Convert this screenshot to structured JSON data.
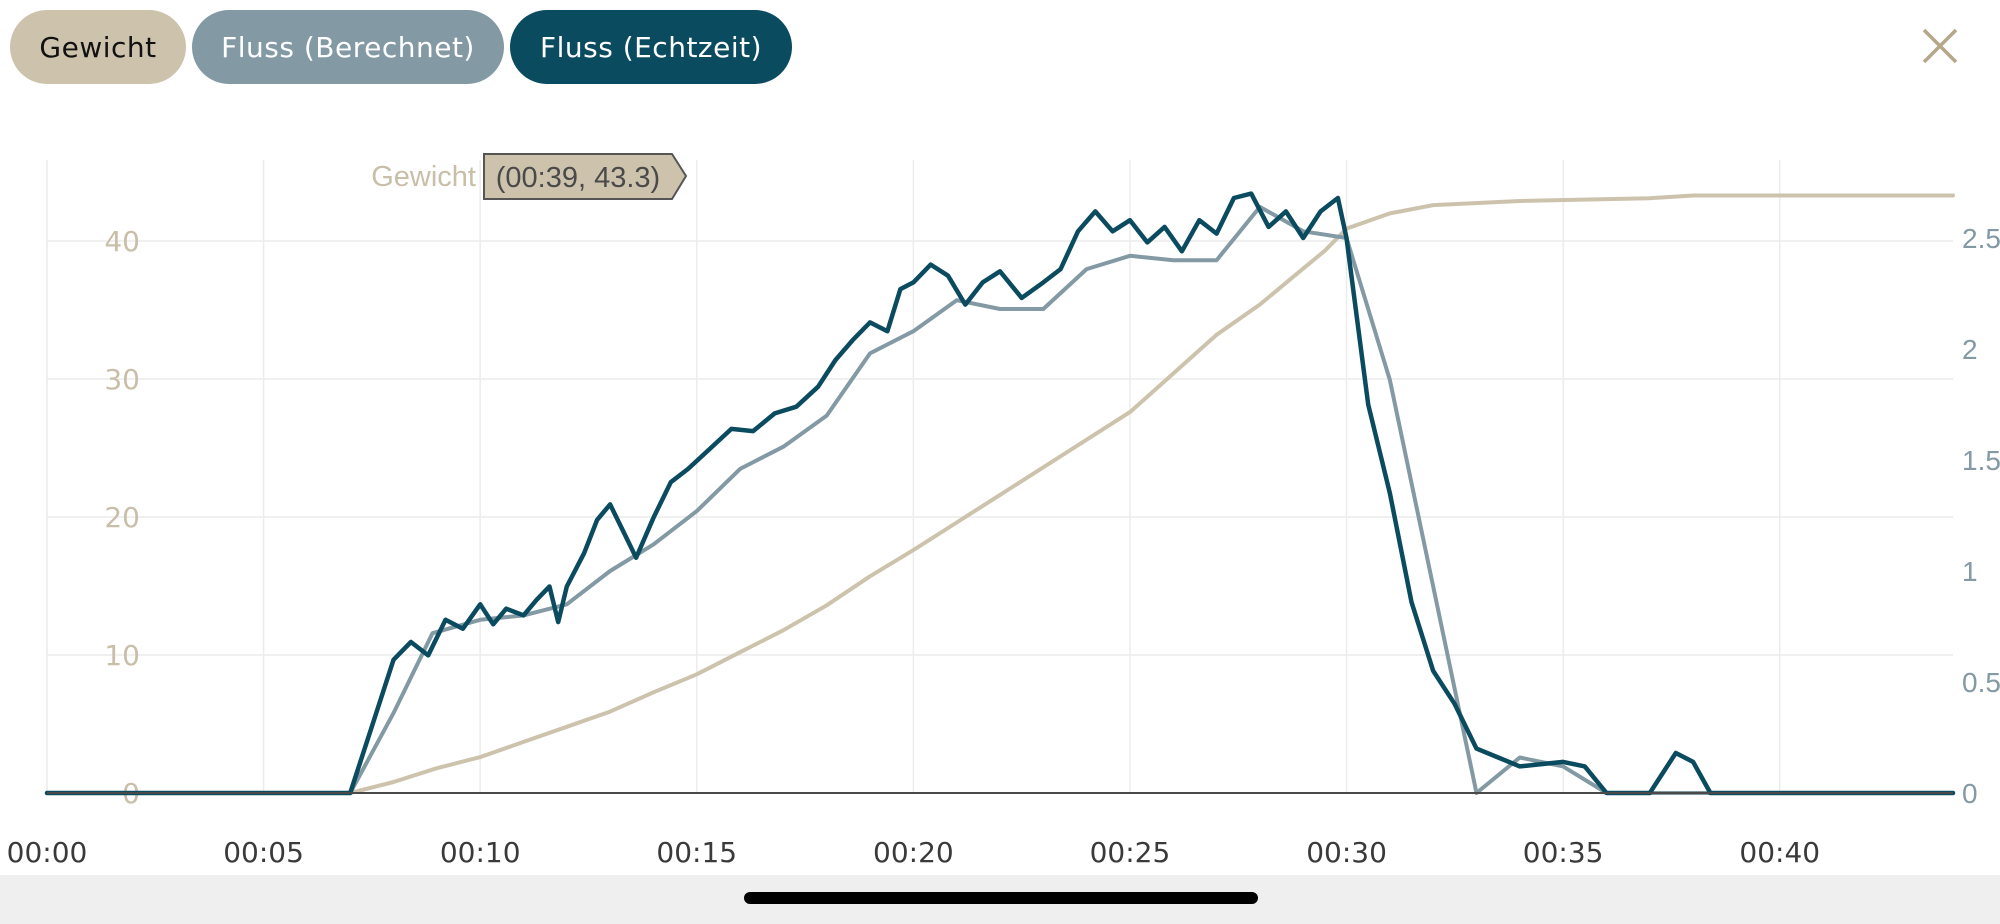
{
  "toggles": {
    "weight_label": "Gewicht",
    "flow_calculated_label": "Fluss (Berechnet)",
    "flow_realtime_label": "Fluss (Echtzeit)"
  },
  "colors": {
    "weight": "#cdc3ad",
    "weight_text": "#c9bfa8",
    "flow_calculated": "#8399a4",
    "flow_realtime": "#0b4b5f",
    "grid": "#ececec",
    "axis_text": "#3a3a3a",
    "close_icon": "#b5a78a",
    "tooltip_bg": "#cdc3ad",
    "tooltip_text": "#4a4a4a"
  },
  "close_icon": "close-icon",
  "chart_data": {
    "type": "line",
    "x_unit": "seconds",
    "x_axis": {
      "range": [
        0,
        44
      ],
      "ticks": [
        0,
        5,
        10,
        15,
        20,
        25,
        30,
        35,
        40
      ],
      "tick_labels": [
        "00:00",
        "00:05",
        "00:10",
        "00:15",
        "00:20",
        "00:25",
        "00:30",
        "00:35",
        "00:40"
      ]
    },
    "y_left": {
      "range": [
        0,
        47
      ],
      "ticks": [
        0,
        10,
        20,
        30,
        40
      ],
      "tick_labels": [
        "0",
        "10",
        "20",
        "30",
        "40"
      ]
    },
    "y_right": {
      "range": [
        0,
        2.75
      ],
      "ticks": [
        0,
        0.5,
        1,
        1.5,
        2,
        2.5
      ],
      "tick_labels": [
        "0",
        "0.5",
        "1",
        "1.5",
        "2",
        "2.5"
      ]
    },
    "grid": true,
    "tooltip": {
      "series_label": "Gewicht",
      "text": "(00:39, 43.3)"
    },
    "series": [
      {
        "name": "Gewicht",
        "axis": "left",
        "color": "#cdc3ad",
        "points": [
          [
            0,
            0
          ],
          [
            7,
            0
          ],
          [
            8,
            0.8
          ],
          [
            9,
            1.8
          ],
          [
            10,
            2.6
          ],
          [
            11,
            3.7
          ],
          [
            12,
            4.8
          ],
          [
            13,
            5.9
          ],
          [
            14,
            7.3
          ],
          [
            15,
            8.6
          ],
          [
            16,
            10.2
          ],
          [
            17,
            11.8
          ],
          [
            18,
            13.6
          ],
          [
            19,
            15.7
          ],
          [
            20,
            17.6
          ],
          [
            21,
            19.6
          ],
          [
            22,
            21.6
          ],
          [
            23,
            23.6
          ],
          [
            24,
            25.6
          ],
          [
            25,
            27.6
          ],
          [
            26,
            30.4
          ],
          [
            27,
            33.2
          ],
          [
            28,
            35.4
          ],
          [
            29,
            38.0
          ],
          [
            29.5,
            39.3
          ],
          [
            30,
            40.9
          ],
          [
            31,
            42.0
          ],
          [
            32,
            42.6
          ],
          [
            34,
            42.9
          ],
          [
            37,
            43.1
          ],
          [
            38,
            43.3
          ],
          [
            44,
            43.3
          ]
        ]
      },
      {
        "name": "Fluss (Berechnet)",
        "axis": "right",
        "color": "#8399a4",
        "points": [
          [
            0,
            0
          ],
          [
            7,
            0
          ],
          [
            8,
            0.36
          ],
          [
            8.9,
            0.72
          ],
          [
            10,
            0.78
          ],
          [
            11,
            0.8
          ],
          [
            12,
            0.85
          ],
          [
            13,
            1.0
          ],
          [
            14,
            1.12
          ],
          [
            15,
            1.27
          ],
          [
            16,
            1.46
          ],
          [
            17,
            1.56
          ],
          [
            18,
            1.7
          ],
          [
            19,
            1.98
          ],
          [
            20,
            2.08
          ],
          [
            21,
            2.22
          ],
          [
            22,
            2.18
          ],
          [
            23,
            2.18
          ],
          [
            24,
            2.36
          ],
          [
            25,
            2.42
          ],
          [
            26,
            2.4
          ],
          [
            27,
            2.4
          ],
          [
            28,
            2.64
          ],
          [
            29,
            2.53
          ],
          [
            30,
            2.5
          ],
          [
            31,
            1.86
          ],
          [
            32,
            0.93
          ],
          [
            33,
            0
          ],
          [
            34,
            0.16
          ],
          [
            35,
            0.12
          ],
          [
            36,
            0
          ],
          [
            37,
            0
          ],
          [
            38,
            0
          ],
          [
            44,
            0
          ]
        ]
      },
      {
        "name": "Fluss (Echtzeit)",
        "axis": "right",
        "color": "#0b4b5f",
        "points": [
          [
            0,
            0
          ],
          [
            7,
            0
          ],
          [
            7.5,
            0.3
          ],
          [
            8,
            0.6
          ],
          [
            8.4,
            0.68
          ],
          [
            8.8,
            0.62
          ],
          [
            9.2,
            0.78
          ],
          [
            9.6,
            0.74
          ],
          [
            10,
            0.85
          ],
          [
            10.3,
            0.76
          ],
          [
            10.6,
            0.83
          ],
          [
            11,
            0.8
          ],
          [
            11.3,
            0.87
          ],
          [
            11.6,
            0.93
          ],
          [
            11.8,
            0.77
          ],
          [
            12,
            0.93
          ],
          [
            12.4,
            1.08
          ],
          [
            12.7,
            1.23
          ],
          [
            13,
            1.3
          ],
          [
            13.3,
            1.18
          ],
          [
            13.6,
            1.06
          ],
          [
            14,
            1.24
          ],
          [
            14.4,
            1.4
          ],
          [
            14.8,
            1.46
          ],
          [
            15.3,
            1.55
          ],
          [
            15.8,
            1.64
          ],
          [
            16.3,
            1.63
          ],
          [
            16.8,
            1.71
          ],
          [
            17.3,
            1.74
          ],
          [
            17.8,
            1.83
          ],
          [
            18.2,
            1.95
          ],
          [
            18.6,
            2.04
          ],
          [
            19,
            2.12
          ],
          [
            19.4,
            2.08
          ],
          [
            19.7,
            2.27
          ],
          [
            20,
            2.3
          ],
          [
            20.4,
            2.38
          ],
          [
            20.8,
            2.33
          ],
          [
            21.2,
            2.2
          ],
          [
            21.6,
            2.3
          ],
          [
            22,
            2.35
          ],
          [
            22.5,
            2.23
          ],
          [
            23,
            2.3
          ],
          [
            23.4,
            2.36
          ],
          [
            23.8,
            2.53
          ],
          [
            24.2,
            2.62
          ],
          [
            24.6,
            2.53
          ],
          [
            25,
            2.58
          ],
          [
            25.4,
            2.48
          ],
          [
            25.8,
            2.55
          ],
          [
            26.2,
            2.44
          ],
          [
            26.6,
            2.58
          ],
          [
            27,
            2.52
          ],
          [
            27.4,
            2.68
          ],
          [
            27.8,
            2.7
          ],
          [
            28.2,
            2.55
          ],
          [
            28.6,
            2.62
          ],
          [
            29,
            2.5
          ],
          [
            29.4,
            2.62
          ],
          [
            29.8,
            2.68
          ],
          [
            30,
            2.5
          ],
          [
            30.5,
            1.75
          ],
          [
            31,
            1.35
          ],
          [
            31.5,
            0.86
          ],
          [
            32,
            0.55
          ],
          [
            32.5,
            0.4
          ],
          [
            33,
            0.2
          ],
          [
            33.5,
            0.16
          ],
          [
            34,
            0.12
          ],
          [
            35,
            0.14
          ],
          [
            35.5,
            0.12
          ],
          [
            36,
            0
          ],
          [
            37,
            0
          ],
          [
            37.6,
            0.18
          ],
          [
            38,
            0.14
          ],
          [
            38.4,
            0
          ],
          [
            44,
            0
          ]
        ]
      }
    ]
  }
}
